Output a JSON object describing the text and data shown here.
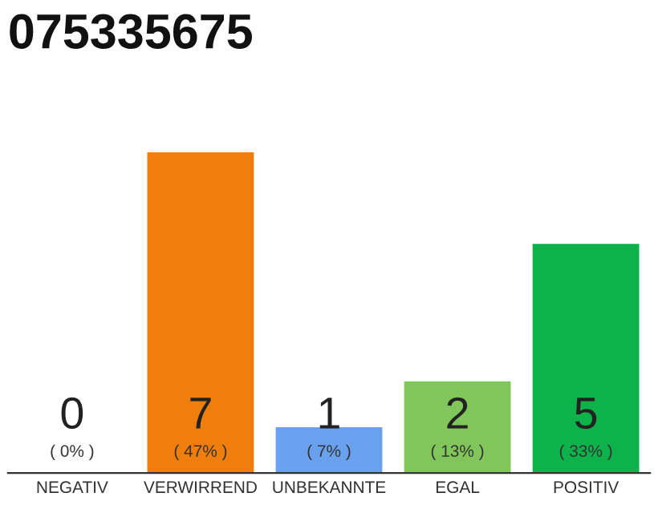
{
  "chart_data": {
    "type": "bar",
    "title": "075335675",
    "categories": [
      "NEGATIV",
      "VERWIRREND",
      "UNBEKANNTE",
      "EGAL",
      "POSITIV"
    ],
    "values": [
      0,
      7,
      1,
      2,
      5
    ],
    "colors": [
      null,
      "#f07e0c",
      "#6aa1ee",
      "#80c65a",
      "#0db24a"
    ],
    "data_labels": true,
    "annotations": [
      {
        "text": "( 0% )",
        "x": "NEGATIV",
        "y": 0
      },
      {
        "text": "( 47% )",
        "x": "VERWIRREND",
        "y": 0
      },
      {
        "text": "( 7% )",
        "x": "UNBEKANNTE",
        "y": 0
      },
      {
        "text": "( 13% )",
        "x": "EGAL",
        "y": 0
      },
      {
        "text": "( 33% )",
        "x": "POSITIV",
        "y": 0
      }
    ],
    "legend": false
  }
}
